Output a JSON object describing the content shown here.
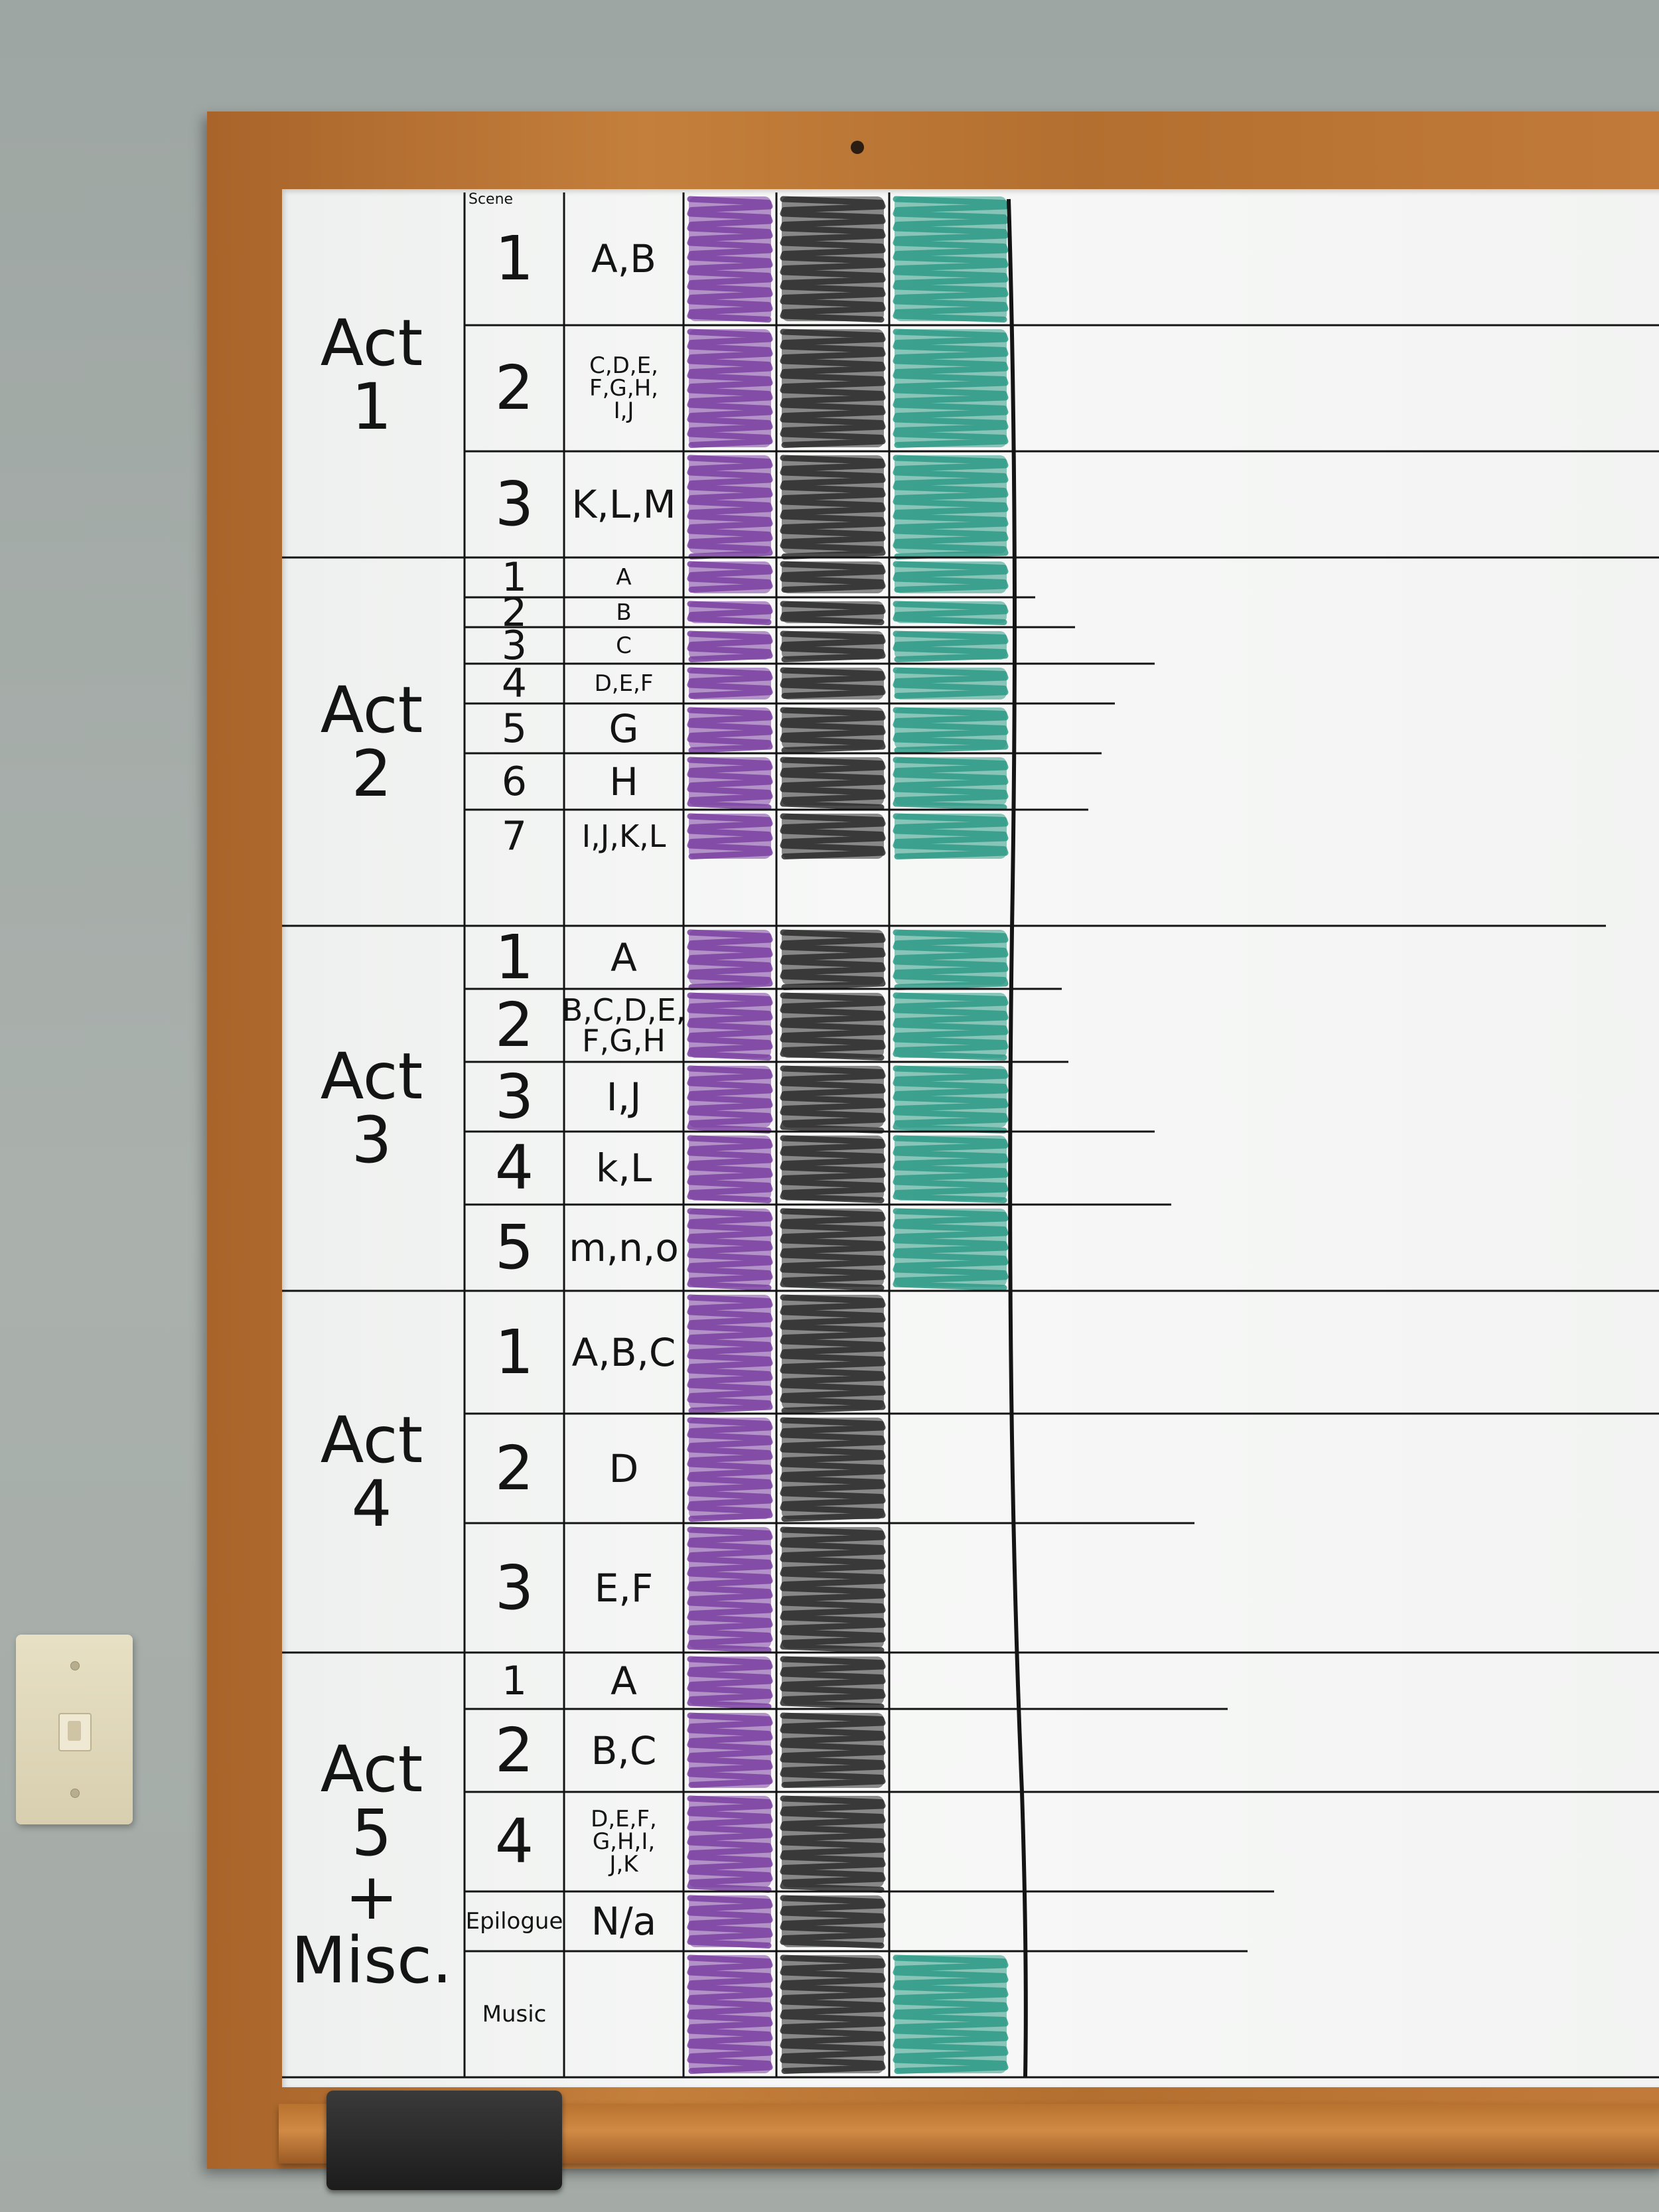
{
  "header": "Scene",
  "acts": [
    {
      "label": "Act\n1",
      "scenes": [
        {
          "num": "1",
          "letters": "A,B",
          "purple": true,
          "black": true,
          "green": true
        },
        {
          "num": "2",
          "letters": "C,D,E,\nF,G,H,\nI,J",
          "purple": true,
          "black": true,
          "green": true
        },
        {
          "num": "3",
          "letters": "K,L,M",
          "purple": true,
          "black": true,
          "green": true
        }
      ]
    },
    {
      "label": "Act\n2",
      "scenes": [
        {
          "num": "1",
          "letters": "A",
          "purple": true,
          "black": true,
          "green": true
        },
        {
          "num": "2",
          "letters": "B",
          "purple": true,
          "black": true,
          "green": true
        },
        {
          "num": "3",
          "letters": "C",
          "purple": true,
          "black": true,
          "green": true
        },
        {
          "num": "4",
          "letters": "D,E,F",
          "purple": true,
          "black": true,
          "green": true
        },
        {
          "num": "5",
          "letters": "G",
          "purple": true,
          "black": true,
          "green": true
        },
        {
          "num": "6",
          "letters": "H",
          "purple": true,
          "black": true,
          "green": true
        },
        {
          "num": "7",
          "letters": "I,J,K,L",
          "purple": true,
          "black": true,
          "green": true
        }
      ]
    },
    {
      "label": "Act\n3",
      "scenes": [
        {
          "num": "1",
          "letters": "A",
          "purple": true,
          "black": true,
          "green": true
        },
        {
          "num": "2",
          "letters": "B,C,D,E,\nF,G,H",
          "purple": true,
          "black": true,
          "green": true
        },
        {
          "num": "3",
          "letters": "I,J",
          "purple": true,
          "black": true,
          "green": true
        },
        {
          "num": "4",
          "letters": "k,L",
          "purple": true,
          "black": true,
          "green": true
        },
        {
          "num": "5",
          "letters": "m,n,o",
          "purple": true,
          "black": true,
          "green": true
        }
      ]
    },
    {
      "label": "Act\n4",
      "scenes": [
        {
          "num": "1",
          "letters": "A,B,C",
          "purple": true,
          "black": true,
          "green": false
        },
        {
          "num": "2",
          "letters": "D",
          "purple": true,
          "black": true,
          "green": false
        },
        {
          "num": "3",
          "letters": "E,F",
          "purple": true,
          "black": true,
          "green": false
        }
      ]
    },
    {
      "label": "Act\n5\n+\nMisc.",
      "scenes": [
        {
          "num": "1",
          "letters": "A",
          "purple": true,
          "black": true,
          "green": false
        },
        {
          "num": "2",
          "letters": "B,C",
          "purple": true,
          "black": true,
          "green": false
        },
        {
          "num": "4",
          "letters": "D,E,F,\nG,H,I,\nJ,K",
          "purple": true,
          "black": true,
          "green": false
        },
        {
          "num": "Epilogue",
          "letters": "N/a",
          "purple": true,
          "black": true,
          "green": false
        },
        {
          "num": "Music",
          "letters": "",
          "purple": true,
          "black": true,
          "green": true
        }
      ]
    }
  ],
  "colors": {
    "purple": "#7a3fa0",
    "black": "#2c2c2c",
    "green": "#2f9a86",
    "ink": "#141414"
  }
}
